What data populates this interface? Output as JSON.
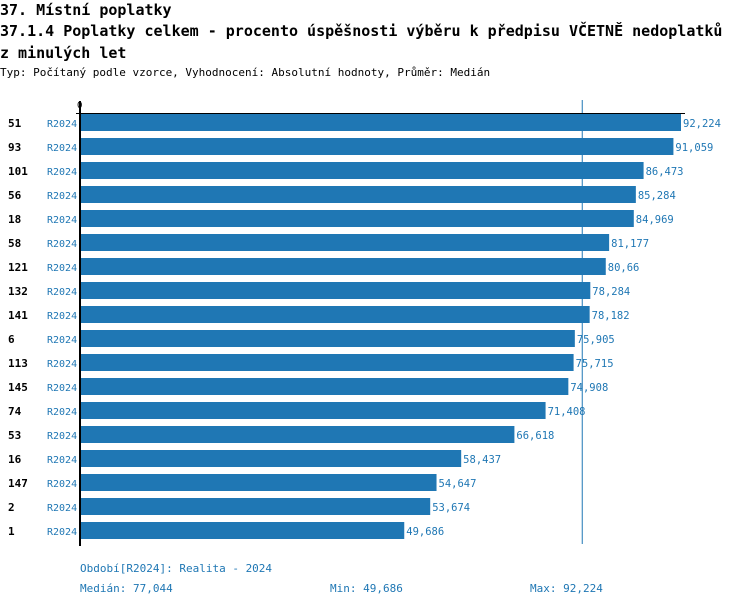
{
  "header": {
    "section": "37. Místní poplatky",
    "title": "37.1.4 Poplatky celkem - procento úspěšnosti výběru k předpisu VČETNĚ nedoplatků z minulých let",
    "subtitle": "Typ: Počítaný podle vzorce, Vyhodnocení: Absolutní hodnoty, Průměr: Medián"
  },
  "chart_data": {
    "type": "bar",
    "orientation": "horizontal",
    "axis_zero_label": "0",
    "categories": [
      "51",
      "93",
      "101",
      "56",
      "18",
      "58",
      "121",
      "132",
      "141",
      "6",
      "113",
      "145",
      "74",
      "53",
      "16",
      "147",
      "2",
      "1"
    ],
    "series": [
      {
        "name": "R2024",
        "values": [
          92.224,
          91.059,
          86.473,
          85.284,
          84.969,
          81.177,
          80.66,
          78.284,
          78.182,
          75.905,
          75.715,
          74.908,
          71.408,
          66.618,
          58.437,
          54.647,
          53.674,
          49.686
        ],
        "labels": [
          "92,224",
          "91,059",
          "86,473",
          "85,284",
          "84,969",
          "81,177",
          "80,66",
          "78,284",
          "78,182",
          "75,905",
          "75,715",
          "74,908",
          "71,408",
          "66,618",
          "58,437",
          "54,647",
          "53,674",
          "49,686"
        ]
      }
    ],
    "median": 77.044,
    "xlim": [
      0,
      92.224
    ],
    "colors": {
      "bar": "#1f77b4",
      "text": "#1f77b4",
      "axis": "#000000"
    }
  },
  "footer": {
    "period": "Období[R2024]: Realita - 2024",
    "median": "Medián: 77,044",
    "min": "Min: 49,686",
    "max": "Max: 92,224"
  }
}
